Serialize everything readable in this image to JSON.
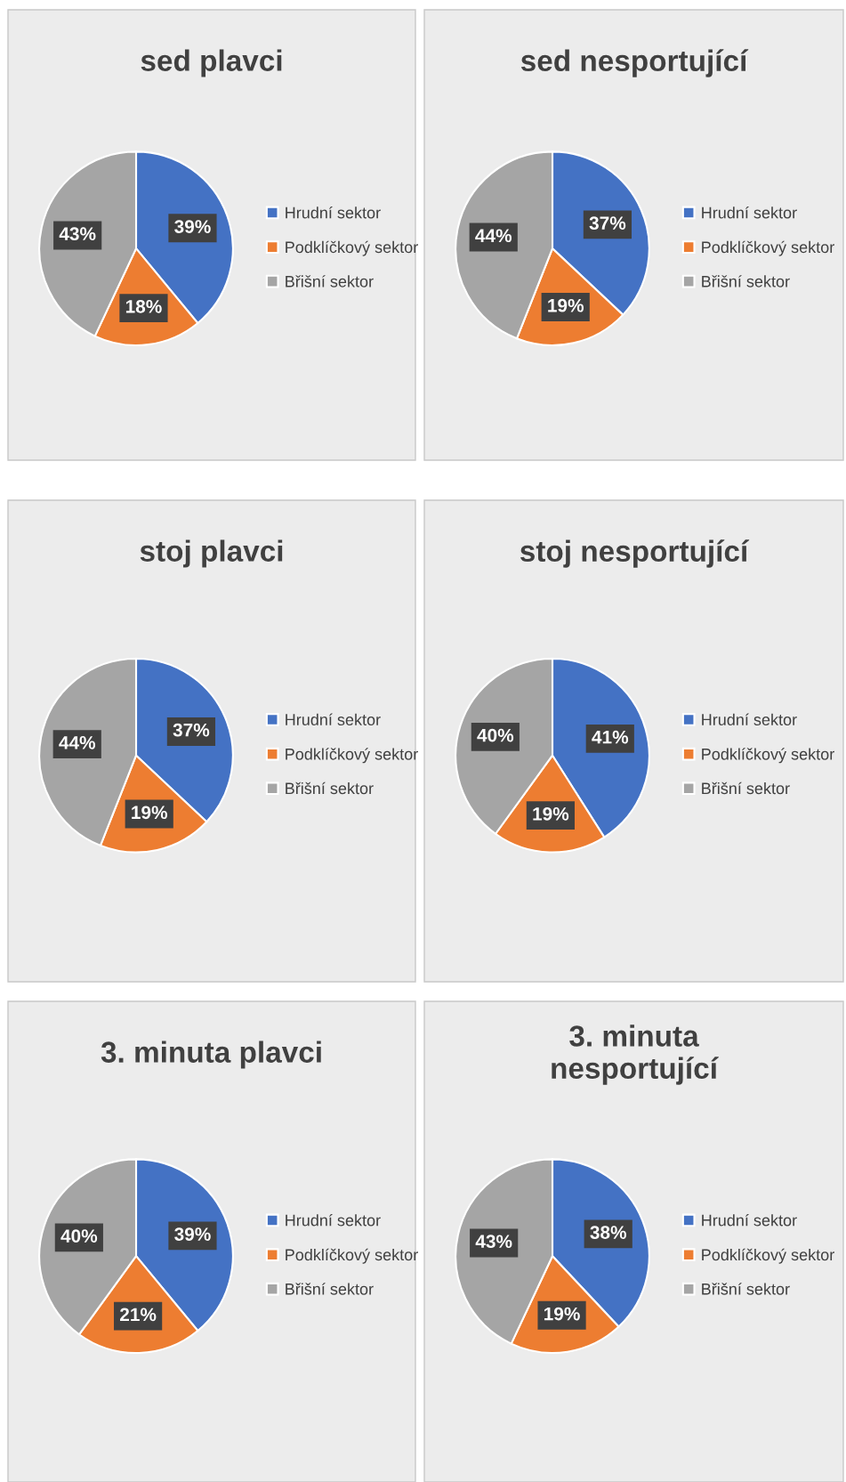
{
  "chart_data": [
    {
      "type": "pie",
      "title": "sed plavci",
      "categories": [
        "Hrudní sektor",
        "Podklíčkový sektor",
        "Břišní sektor"
      ],
      "values": [
        39,
        18,
        43
      ],
      "value_labels": [
        "39%",
        "18%",
        "43%"
      ],
      "colors": [
        "#4472c4",
        "#ed7d31",
        "#a5a5a5"
      ],
      "legend": "right"
    },
    {
      "type": "pie",
      "title": "sed nesportující",
      "categories": [
        "Hrudní sektor",
        "Podklíčkový sektor",
        "Břišní sektor"
      ],
      "values": [
        37,
        19,
        44
      ],
      "value_labels": [
        "37%",
        "19%",
        "44%"
      ],
      "colors": [
        "#4472c4",
        "#ed7d31",
        "#a5a5a5"
      ],
      "legend": "right"
    },
    {
      "type": "pie",
      "title": "stoj plavci",
      "categories": [
        "Hrudní sektor",
        "Podklíčkový sektor",
        "Břišní sektor"
      ],
      "values": [
        37,
        19,
        44
      ],
      "value_labels": [
        "37%",
        "19%",
        "44%"
      ],
      "colors": [
        "#4472c4",
        "#ed7d31",
        "#a5a5a5"
      ],
      "legend": "right"
    },
    {
      "type": "pie",
      "title": "stoj nesportující",
      "categories": [
        "Hrudní sektor",
        "Podklíčkový sektor",
        "Břišní sektor"
      ],
      "values": [
        41,
        19,
        40
      ],
      "value_labels": [
        "41%",
        "19%",
        "40%"
      ],
      "colors": [
        "#4472c4",
        "#ed7d31",
        "#a5a5a5"
      ],
      "legend": "right"
    },
    {
      "type": "pie",
      "title": "3. minuta plavci",
      "categories": [
        "Hrudní sektor",
        "Podklíčkový sektor",
        "Břišní sektor"
      ],
      "values": [
        39,
        21,
        40
      ],
      "value_labels": [
        "39%",
        "21%",
        "40%"
      ],
      "colors": [
        "#4472c4",
        "#ed7d31",
        "#a5a5a5"
      ],
      "legend": "right"
    },
    {
      "type": "pie",
      "title": "3. minuta\nnesportující",
      "categories": [
        "Hrudní sektor",
        "Podklíčkový sektor",
        "Břišní sektor"
      ],
      "values": [
        38,
        19,
        43
      ],
      "value_labels": [
        "38%",
        "19%",
        "43%"
      ],
      "colors": [
        "#4472c4",
        "#ed7d31",
        "#a5a5a5"
      ],
      "legend": "right"
    }
  ]
}
